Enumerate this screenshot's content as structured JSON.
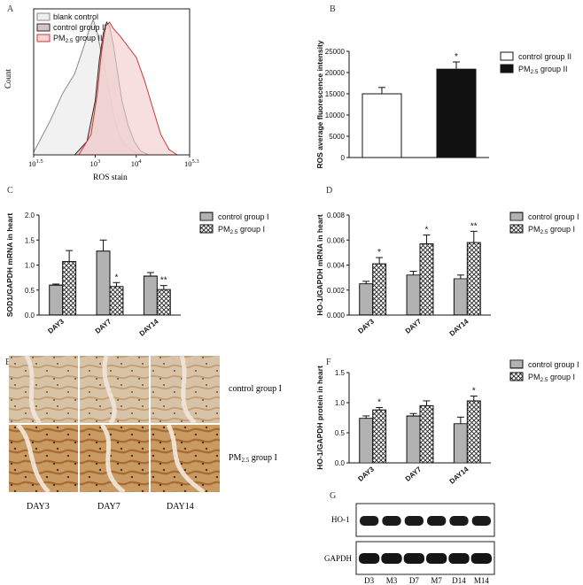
{
  "panels": {
    "A": "A",
    "B": "B",
    "C": "C",
    "D": "D",
    "E": "E",
    "F": "F",
    "G": "G"
  },
  "chart_data": [
    {
      "id": "A",
      "type": "area",
      "xlabel": "ROS stain",
      "ylabel": "Count",
      "xscale": "log",
      "x_ticks": [
        "10^1.5",
        "10^3",
        "10^4",
        "10^5.3"
      ],
      "legend": {
        "placement": "top-left",
        "entries": [
          "blank control",
          "control group II",
          "PM2.5 group II"
        ]
      },
      "series": [
        {
          "name": "blank control",
          "color": "#8a8a8a",
          "fill": "#efefef",
          "x": [
            1.5,
            1.9,
            2.2,
            2.5,
            2.7,
            2.85,
            2.95,
            3.05,
            3.15,
            3.25,
            3.35,
            3.45,
            3.55,
            3.7,
            3.9,
            4.1
          ],
          "y": [
            0.02,
            0.25,
            0.45,
            0.6,
            0.78,
            0.92,
            1.0,
            0.9,
            0.75,
            0.6,
            0.45,
            0.3,
            0.18,
            0.08,
            0.03,
            0.0
          ]
        },
        {
          "name": "control group II",
          "color": "#2b2b2b",
          "fill": "#d9c4c4",
          "x": [
            2.5,
            2.8,
            3.0,
            3.1,
            3.2,
            3.28,
            3.35,
            3.45,
            3.55,
            3.65,
            3.8,
            3.95,
            4.1,
            4.3
          ],
          "y": [
            0.0,
            0.1,
            0.4,
            0.7,
            0.9,
            0.98,
            0.95,
            0.8,
            0.6,
            0.4,
            0.22,
            0.1,
            0.03,
            0.0
          ]
        },
        {
          "name": "PM2.5 group II",
          "color": "#d23a3a",
          "fill": "#f6d4d4",
          "x": [
            2.6,
            2.9,
            3.05,
            3.15,
            3.25,
            3.35,
            3.45,
            3.6,
            3.8,
            4.0,
            4.2,
            4.4,
            4.6,
            4.8,
            5.0
          ],
          "y": [
            0.0,
            0.15,
            0.45,
            0.75,
            0.95,
            0.98,
            0.93,
            0.88,
            0.8,
            0.72,
            0.55,
            0.35,
            0.15,
            0.04,
            0.0
          ]
        }
      ]
    },
    {
      "id": "B",
      "type": "bar",
      "ylabel": "ROS average fluorescence intensity",
      "ylim": [
        0,
        25000
      ],
      "y_ticks": [
        "0",
        "5000",
        "10000",
        "15000",
        "20000",
        "25000"
      ],
      "legend": {
        "placement": "right",
        "entries": [
          "control group II",
          "PM2.5 group II"
        ]
      },
      "series": [
        {
          "name": "control group II",
          "values": [
            15000
          ],
          "errors": [
            1500
          ],
          "color": "#ffffff"
        },
        {
          "name": "PM2.5 group II",
          "values": [
            20800
          ],
          "errors": [
            1700
          ],
          "color": "#111111"
        }
      ],
      "annotations": [
        {
          "series": 1,
          "index": 0,
          "text": "*"
        }
      ]
    },
    {
      "id": "C",
      "type": "bar",
      "ylabel": "SOD1/GAPDH mRNA in heart",
      "categories": [
        "DAY3",
        "DAY7",
        "DAY14"
      ],
      "ylim": [
        0,
        2.0
      ],
      "y_ticks": [
        "0.0",
        "0.5",
        "1.0",
        "1.5",
        "2.0"
      ],
      "legend": {
        "placement": "right",
        "entries": [
          "control group I",
          "PM2.5 group I"
        ]
      },
      "series": [
        {
          "name": "control group I",
          "values": [
            0.6,
            1.28,
            0.78
          ],
          "errors": [
            0.02,
            0.22,
            0.07
          ]
        },
        {
          "name": "PM2.5 group I",
          "values": [
            1.07,
            0.57,
            0.51
          ],
          "errors": [
            0.22,
            0.08,
            0.08
          ]
        }
      ],
      "annotations": [
        {
          "series": 1,
          "index": 1,
          "text": "*"
        },
        {
          "series": 1,
          "index": 2,
          "text": "**"
        }
      ]
    },
    {
      "id": "D",
      "type": "bar",
      "ylabel": "HO-1/GAPDH mRNA in heart",
      "categories": [
        "DAY3",
        "DAY7",
        "DAY14"
      ],
      "ylim": [
        0,
        0.008
      ],
      "y_ticks": [
        "0.000",
        "0.002",
        "0.004",
        "0.006",
        "0.008"
      ],
      "legend": {
        "placement": "right",
        "entries": [
          "control group I",
          "PM2.5 group I"
        ]
      },
      "series": [
        {
          "name": "control group I",
          "values": [
            0.0025,
            0.0032,
            0.0029
          ],
          "errors": [
            0.0002,
            0.0003,
            0.0003
          ]
        },
        {
          "name": "PM2.5 group I",
          "values": [
            0.0041,
            0.0057,
            0.0058
          ],
          "errors": [
            0.0005,
            0.0007,
            0.0009
          ]
        }
      ],
      "annotations": [
        {
          "series": 1,
          "index": 0,
          "text": "*"
        },
        {
          "series": 1,
          "index": 1,
          "text": "*"
        },
        {
          "series": 1,
          "index": 2,
          "text": "**"
        }
      ]
    },
    {
      "id": "F",
      "type": "bar",
      "ylabel": "HO-1/GAPDH protein in heart",
      "categories": [
        "DAY3",
        "DAY7",
        "DAY14"
      ],
      "ylim": [
        0,
        1.5
      ],
      "y_ticks": [
        "0.0",
        "0.5",
        "1.0",
        "1.5"
      ],
      "legend": {
        "placement": "right",
        "entries": [
          "control group I",
          "PM2.5 group I"
        ]
      },
      "series": [
        {
          "name": "control group I",
          "values": [
            0.74,
            0.78,
            0.65
          ],
          "errors": [
            0.04,
            0.04,
            0.11
          ]
        },
        {
          "name": "PM2.5 group I",
          "values": [
            0.88,
            0.95,
            1.03
          ],
          "errors": [
            0.04,
            0.08,
            0.08
          ]
        }
      ],
      "annotations": [
        {
          "series": 1,
          "index": 0,
          "text": "*"
        },
        {
          "series": 1,
          "index": 2,
          "text": "*"
        }
      ]
    }
  ],
  "histology": {
    "row_labels": [
      "control group I",
      "PM2.5 group I"
    ],
    "col_labels": [
      "DAY3",
      "DAY7",
      "DAY14"
    ]
  },
  "blot": {
    "rows": [
      "HO-1",
      "GAPDH"
    ],
    "lanes": [
      "D3",
      "M3",
      "D7",
      "M7",
      "D14",
      "M14"
    ]
  }
}
